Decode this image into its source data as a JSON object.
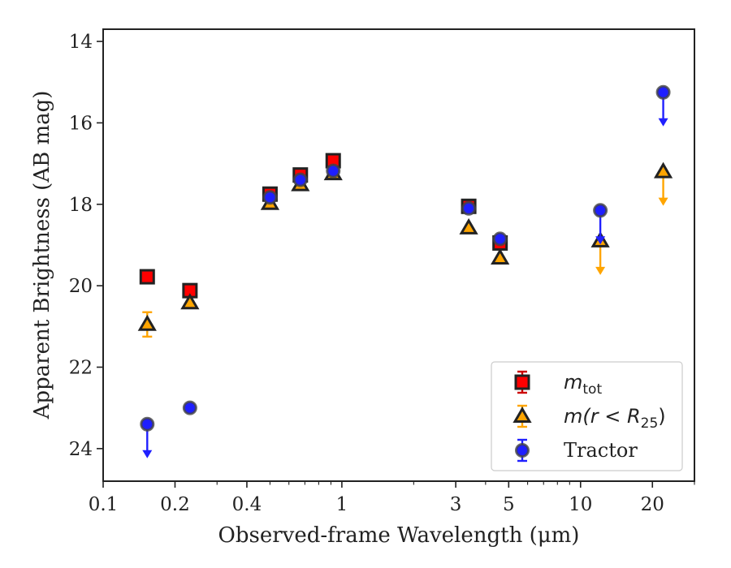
{
  "chart_data": {
    "type": "scatter",
    "xlabel": "Observed-frame Wavelength (μm)",
    "ylabel": "Apparent Brightness (AB mag)",
    "xscale": "log",
    "xlim": [
      0.1,
      30
    ],
    "ylim": [
      24.8,
      13.7
    ],
    "y_inverted": true,
    "x_ticks": [
      0.1,
      0.2,
      0.4,
      1,
      3,
      5,
      10,
      20
    ],
    "x_tick_labels": [
      "0.1",
      "0.2",
      "0.4",
      "1",
      "3",
      "5",
      "10",
      "20"
    ],
    "y_ticks": [
      14,
      16,
      18,
      20,
      22,
      24
    ],
    "y_tick_labels": [
      "14",
      "16",
      "18",
      "20",
      "22",
      "24"
    ],
    "grid": false,
    "legend_position": "lower-right",
    "series": [
      {
        "name": "m_tot",
        "legend_main": "m",
        "legend_sub": "tot",
        "marker": "square",
        "face_color": "#ff0000",
        "edge_color": "#222222",
        "error_color": "#cc0000",
        "points": [
          {
            "x": 0.153,
            "y": 19.78
          },
          {
            "x": 0.231,
            "y": 20.12
          },
          {
            "x": 0.5,
            "y": 17.75
          },
          {
            "x": 0.67,
            "y": 17.28
          },
          {
            "x": 0.92,
            "y": 16.93
          },
          {
            "x": 3.4,
            "y": 18.05
          },
          {
            "x": 4.6,
            "y": 18.95
          }
        ]
      },
      {
        "name": "m(r < R_25)",
        "legend_main": "m(r < R",
        "legend_sub": "25",
        "legend_tail": ")",
        "marker": "triangle",
        "face_color": "#ffa500",
        "edge_color": "#222222",
        "error_color": "#ffa500",
        "points": [
          {
            "x": 0.153,
            "y": 20.95,
            "yerr": 0.3
          },
          {
            "x": 0.231,
            "y": 20.42
          },
          {
            "x": 0.5,
            "y": 17.98
          },
          {
            "x": 0.67,
            "y": 17.52
          },
          {
            "x": 0.92,
            "y": 17.25
          },
          {
            "x": 3.4,
            "y": 18.58
          },
          {
            "x": 4.6,
            "y": 19.32
          },
          {
            "x": 12.1,
            "y": 18.9,
            "upper_limit": true
          },
          {
            "x": 22.2,
            "y": 17.2,
            "upper_limit": true
          }
        ]
      },
      {
        "name": "Tractor",
        "legend_main": "Tractor",
        "marker": "circle",
        "face_color": "#1f1fff",
        "edge_color": "#444444",
        "error_color": "#2020ff",
        "points": [
          {
            "x": 0.153,
            "y": 23.4,
            "upper_limit": true
          },
          {
            "x": 0.231,
            "y": 23.0
          },
          {
            "x": 0.5,
            "y": 17.83
          },
          {
            "x": 0.67,
            "y": 17.4
          },
          {
            "x": 0.92,
            "y": 17.18
          },
          {
            "x": 3.4,
            "y": 18.1
          },
          {
            "x": 4.6,
            "y": 18.85
          },
          {
            "x": 12.1,
            "y": 18.15,
            "upper_limit": true
          },
          {
            "x": 22.2,
            "y": 15.25,
            "upper_limit": true
          }
        ]
      }
    ]
  }
}
